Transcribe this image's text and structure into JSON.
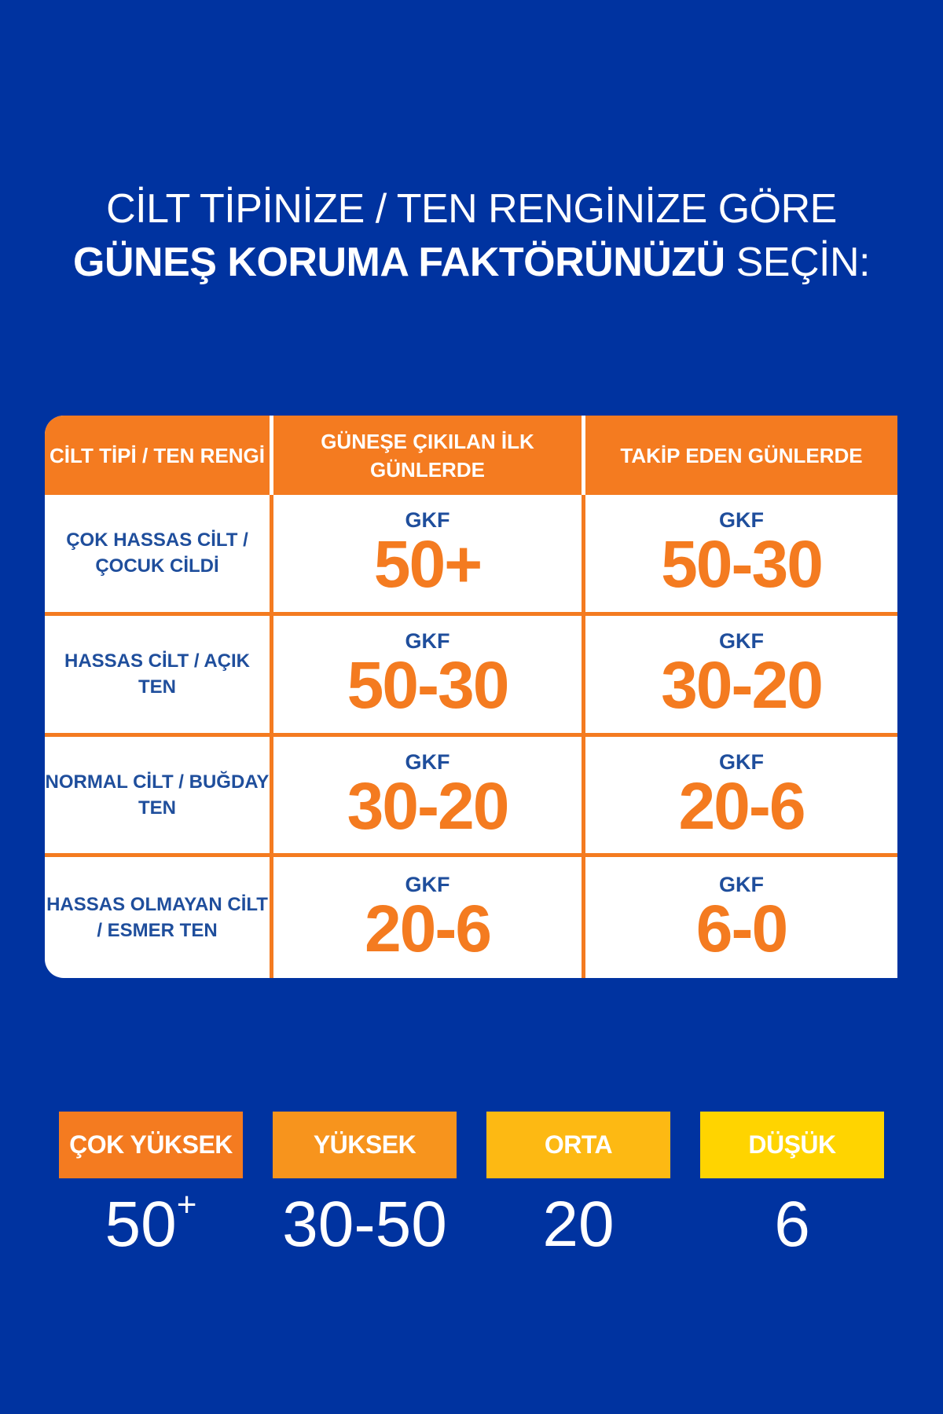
{
  "title": {
    "line1": "CİLT TİPİNİZE / TEN RENGİNİZE GÖRE",
    "line2_bold": "GÜNEŞ KORUMA FAKTÖRÜNÜZÜ",
    "line2_rest": " SEÇİN:"
  },
  "table": {
    "headers": [
      "CİLT TİPİ / TEN RENGİ",
      "GÜNEŞE ÇIKILAN İLK GÜNLERDE",
      "TAKİP EDEN GÜNLERDE"
    ],
    "prefix": "GKF",
    "rows": [
      {
        "label": "ÇOK HASSAS CİLT / ÇOCUK CİLDİ",
        "first": "50+",
        "following": "50-30"
      },
      {
        "label": "HASSAS CİLT / AÇIK TEN",
        "first": "50-30",
        "following": "30-20"
      },
      {
        "label": "NORMAL CİLT / BUĞDAY TEN",
        "first": "30-20",
        "following": "20-6"
      },
      {
        "label": "HASSAS OLMAYAN CİLT / ESMER TEN",
        "first": "20-6",
        "following": "6-0"
      }
    ]
  },
  "levels": [
    {
      "label": "ÇOK YÜKSEK",
      "value": "50",
      "sup": "+",
      "color": "#f47b20"
    },
    {
      "label": "YÜKSEK",
      "value": "30-50",
      "sup": "",
      "color": "#f7941d"
    },
    {
      "label": "ORTA",
      "value": "20",
      "sup": "",
      "color": "#fdb913"
    },
    {
      "label": "DÜŞÜK",
      "value": "6",
      "sup": "",
      "color": "#ffd400"
    }
  ],
  "colors": {
    "background": "#0033a0",
    "accent": "#f47b20",
    "text_blue": "#1f4e9c"
  }
}
